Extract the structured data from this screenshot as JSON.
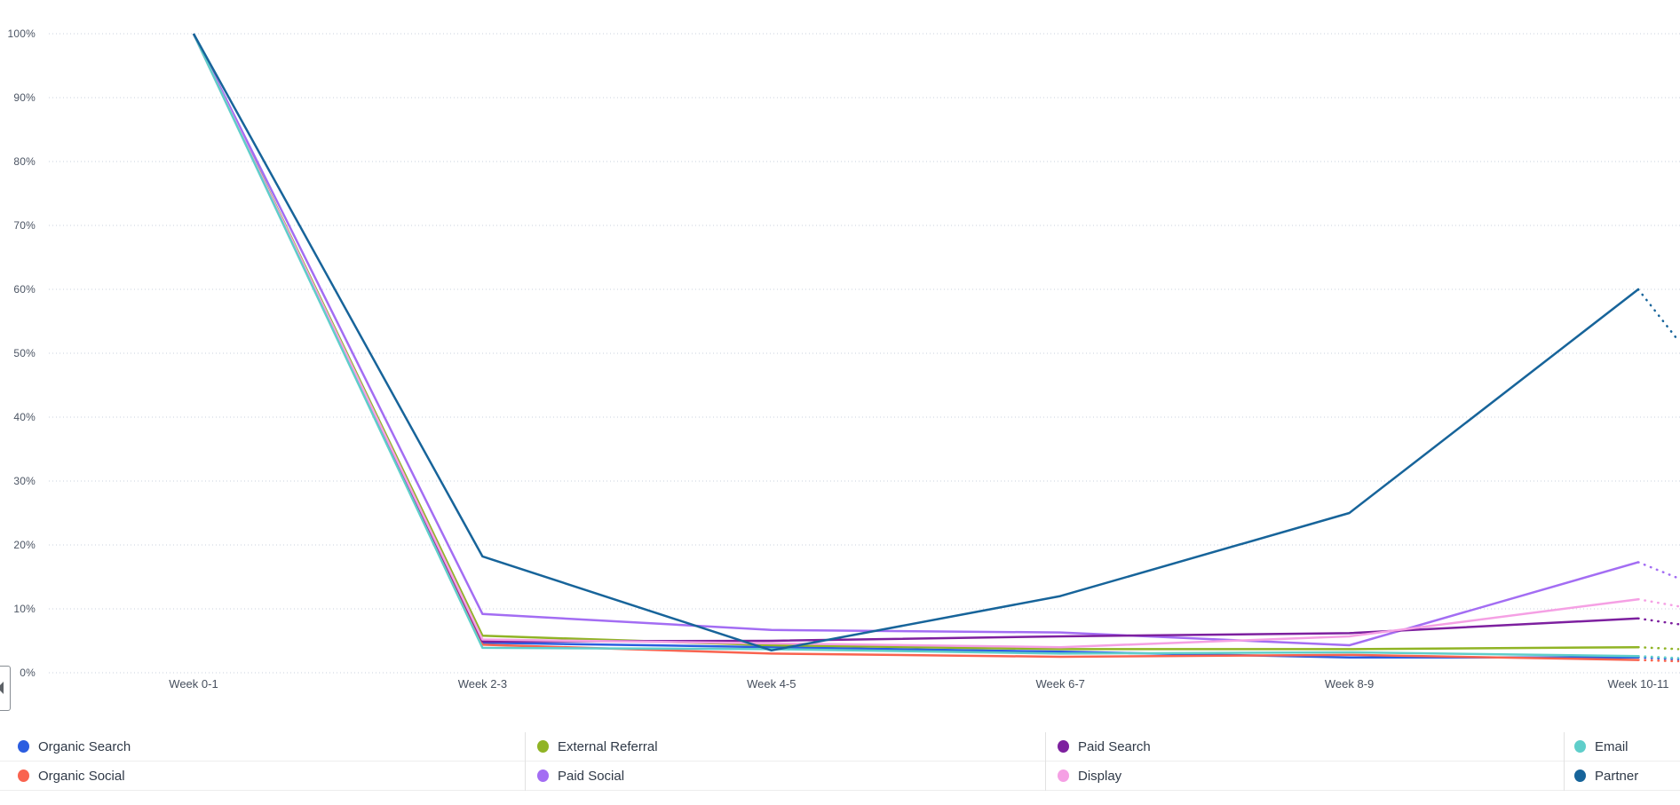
{
  "chart_data": {
    "type": "line",
    "title": "",
    "x_categories": [
      "Week 0-1",
      "Week 2-3",
      "Week 4-5",
      "Week 6-7",
      "Week 8-9",
      "Week 10-11"
    ],
    "y_tick_labels": [
      "0%",
      "10%",
      "20%",
      "30%",
      "40%",
      "50%",
      "60%",
      "70%",
      "80%",
      "90%",
      "100%"
    ],
    "ylim": [
      0,
      100
    ],
    "grid": "horizontal-dotted",
    "gridline_color": "#c9d2dd",
    "legend_position": "bottom",
    "projection_style": "dotted-continuation-after-last-week",
    "series": [
      {
        "name": "Organic Search",
        "color": "#2b5de0",
        "values": [
          100,
          4.7,
          4.0,
          3.3,
          2.4,
          2.4
        ],
        "projected_end": 2.1
      },
      {
        "name": "Organic Social",
        "color": "#f9634f",
        "values": [
          100,
          4.4,
          3.0,
          2.5,
          2.8,
          2.0
        ],
        "projected_end": 1.8
      },
      {
        "name": "External Referral",
        "color": "#90b425",
        "values": [
          100,
          5.8,
          4.3,
          3.7,
          3.7,
          4.0
        ],
        "projected_end": 3.7
      },
      {
        "name": "Paid Social",
        "color": "#a36df3",
        "values": [
          100,
          9.2,
          6.7,
          6.3,
          4.3,
          17.3
        ],
        "projected_end": 14.8
      },
      {
        "name": "Paid Search",
        "color": "#7d209f",
        "values": [
          100,
          4.9,
          5.0,
          5.7,
          6.2,
          8.5
        ],
        "projected_end": 7.6
      },
      {
        "name": "Display",
        "color": "#f5a0e4",
        "values": [
          100,
          5.2,
          4.6,
          4.0,
          5.7,
          11.5
        ],
        "projected_end": 10.4
      },
      {
        "name": "Email",
        "color": "#5fceca",
        "values": [
          100,
          3.9,
          3.7,
          3.0,
          3.2,
          2.6
        ],
        "projected_end": 2.3
      },
      {
        "name": "Partner",
        "color": "#17649a",
        "values": [
          100,
          18.2,
          3.5,
          12.0,
          25.0,
          60.0
        ],
        "projected_end": 52.0
      }
    ]
  },
  "legend": {
    "columns": 4,
    "rows_per_column": 2,
    "order": [
      "Organic Search",
      "Organic Social",
      "External Referral",
      "Paid Social",
      "Paid Search",
      "Display",
      "Email",
      "Partner"
    ]
  },
  "controls": {
    "collapse_button": {
      "icon": "left-caret"
    }
  }
}
